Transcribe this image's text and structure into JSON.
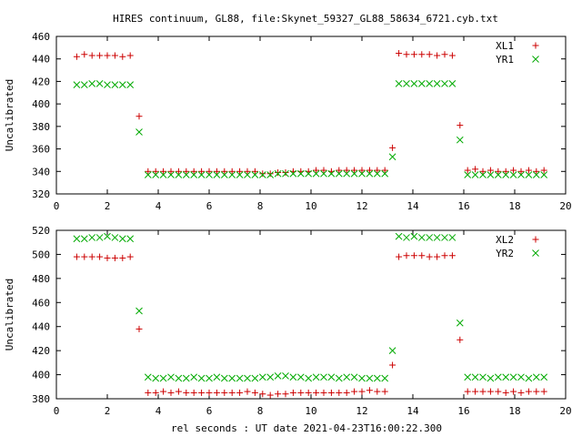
{
  "chart_data": {
    "title": "HIRES continuum, GL88, file:Skynet_59327_GL88_58634_6721.cyb.txt",
    "xlabel": "rel seconds : UT date 2021-04-23T16:00:22.300",
    "xlim": [
      0,
      20
    ],
    "xticks": [
      0,
      2,
      4,
      6,
      8,
      10,
      12,
      14,
      16,
      18,
      20
    ],
    "panels": [
      {
        "type": "scatter",
        "ylabel": "Uncalibrated",
        "ylim": [
          320,
          460
        ],
        "yticks": [
          320,
          340,
          360,
          380,
          400,
          420,
          440,
          460
        ],
        "legend_position": "top-right",
        "series": [
          {
            "name": "XL1",
            "marker": "plus",
            "color": "#cc0000",
            "x": [
              0.8,
              1.1,
              1.4,
              1.7,
              2.0,
              2.3,
              2.6,
              2.9,
              3.25,
              3.6,
              3.9,
              4.2,
              4.5,
              4.8,
              5.1,
              5.4,
              5.7,
              6.0,
              6.3,
              6.6,
              6.9,
              7.2,
              7.5,
              7.8,
              8.1,
              8.4,
              8.7,
              9.0,
              9.3,
              9.6,
              9.9,
              10.2,
              10.5,
              10.8,
              11.1,
              11.4,
              11.7,
              12.0,
              12.3,
              12.6,
              12.9,
              13.2,
              13.45,
              13.75,
              14.05,
              14.35,
              14.65,
              14.95,
              15.25,
              15.55,
              15.85,
              16.15,
              16.45,
              16.75,
              17.05,
              17.35,
              17.65,
              17.95,
              18.25,
              18.55,
              18.85,
              19.15
            ],
            "y": [
              442,
              444,
              443,
              443,
              443,
              443,
              442,
              443,
              389,
              340,
              340,
              340,
              340,
              340,
              340,
              340,
              340,
              340,
              340,
              340,
              340,
              340,
              340,
              340,
              338,
              338,
              339,
              339,
              340,
              340,
              340,
              341,
              341,
              340,
              341,
              341,
              341,
              341,
              341,
              341,
              341,
              361,
              445,
              444,
              444,
              444,
              444,
              443,
              444,
              443,
              381,
              341,
              342,
              340,
              341,
              340,
              340,
              341,
              340,
              341,
              340,
              341
            ]
          },
          {
            "name": "YR1",
            "marker": "cross",
            "color": "#00aa00",
            "x": [
              0.8,
              1.1,
              1.4,
              1.7,
              2.0,
              2.3,
              2.6,
              2.9,
              3.25,
              3.6,
              3.9,
              4.2,
              4.5,
              4.8,
              5.1,
              5.4,
              5.7,
              6.0,
              6.3,
              6.6,
              6.9,
              7.2,
              7.5,
              7.8,
              8.1,
              8.4,
              8.7,
              9.0,
              9.3,
              9.6,
              9.9,
              10.2,
              10.5,
              10.8,
              11.1,
              11.4,
              11.7,
              12.0,
              12.3,
              12.6,
              12.9,
              13.2,
              13.45,
              13.75,
              14.05,
              14.35,
              14.65,
              14.95,
              15.25,
              15.55,
              15.85,
              16.15,
              16.45,
              16.75,
              17.05,
              17.35,
              17.65,
              17.95,
              18.25,
              18.55,
              18.85,
              19.15
            ],
            "y": [
              417,
              417,
              418,
              418,
              417,
              417,
              417,
              417,
              375,
              337,
              337,
              337,
              337,
              337,
              337,
              337,
              337,
              337,
              337,
              337,
              337,
              337,
              337,
              337,
              337,
              337,
              338,
              338,
              338,
              338,
              338,
              338,
              338,
              338,
              338,
              338,
              338,
              338,
              338,
              338,
              338,
              353,
              418,
              418,
              418,
              418,
              418,
              418,
              418,
              418,
              368,
              337,
              337,
              337,
              337,
              337,
              337,
              337,
              337,
              337,
              337,
              337
            ]
          }
        ]
      },
      {
        "type": "scatter",
        "ylabel": "Uncalibrated",
        "ylim": [
          380,
          520
        ],
        "yticks": [
          380,
          400,
          420,
          440,
          460,
          480,
          500,
          520
        ],
        "legend_position": "top-right",
        "series": [
          {
            "name": "XL2",
            "marker": "plus",
            "color": "#cc0000",
            "x": [
              0.8,
              1.1,
              1.4,
              1.7,
              2.0,
              2.3,
              2.6,
              2.9,
              3.25,
              3.6,
              3.9,
              4.2,
              4.5,
              4.8,
              5.1,
              5.4,
              5.7,
              6.0,
              6.3,
              6.6,
              6.9,
              7.2,
              7.5,
              7.8,
              8.1,
              8.4,
              8.7,
              9.0,
              9.3,
              9.6,
              9.9,
              10.2,
              10.5,
              10.8,
              11.1,
              11.4,
              11.7,
              12.0,
              12.3,
              12.6,
              12.9,
              13.2,
              13.45,
              13.75,
              14.05,
              14.35,
              14.65,
              14.95,
              15.25,
              15.55,
              15.85,
              16.15,
              16.45,
              16.75,
              17.05,
              17.35,
              17.65,
              17.95,
              18.25,
              18.55,
              18.85,
              19.15
            ],
            "y": [
              498,
              498,
              498,
              498,
              497,
              497,
              497,
              498,
              438,
              385,
              385,
              386,
              385,
              386,
              385,
              385,
              385,
              385,
              385,
              385,
              385,
              385,
              386,
              385,
              384,
              383,
              384,
              384,
              385,
              385,
              385,
              385,
              385,
              385,
              385,
              385,
              386,
              386,
              387,
              386,
              386,
              408,
              498,
              499,
              499,
              499,
              498,
              498,
              499,
              499,
              429,
              386,
              386,
              386,
              386,
              386,
              385,
              386,
              385,
              386,
              386,
              386
            ]
          },
          {
            "name": "YR2",
            "marker": "cross",
            "color": "#00aa00",
            "x": [
              0.8,
              1.1,
              1.4,
              1.7,
              2.0,
              2.3,
              2.6,
              2.9,
              3.25,
              3.6,
              3.9,
              4.2,
              4.5,
              4.8,
              5.1,
              5.4,
              5.7,
              6.0,
              6.3,
              6.6,
              6.9,
              7.2,
              7.5,
              7.8,
              8.1,
              8.4,
              8.7,
              9.0,
              9.3,
              9.6,
              9.9,
              10.2,
              10.5,
              10.8,
              11.1,
              11.4,
              11.7,
              12.0,
              12.3,
              12.6,
              12.9,
              13.2,
              13.45,
              13.75,
              14.05,
              14.35,
              14.65,
              14.95,
              15.25,
              15.55,
              15.85,
              16.15,
              16.45,
              16.75,
              17.05,
              17.35,
              17.65,
              17.95,
              18.25,
              18.55,
              18.85,
              19.15
            ],
            "y": [
              513,
              513,
              514,
              514,
              515,
              514,
              513,
              513,
              453,
              398,
              397,
              397,
              398,
              397,
              397,
              398,
              397,
              397,
              398,
              397,
              397,
              397,
              397,
              397,
              398,
              398,
              399,
              399,
              398,
              398,
              397,
              398,
              398,
              398,
              397,
              398,
              398,
              397,
              397,
              397,
              397,
              420,
              515,
              514,
              515,
              514,
              514,
              514,
              514,
              514,
              443,
              398,
              398,
              398,
              397,
              398,
              398,
              398,
              398,
              397,
              398,
              398
            ]
          }
        ]
      }
    ]
  }
}
